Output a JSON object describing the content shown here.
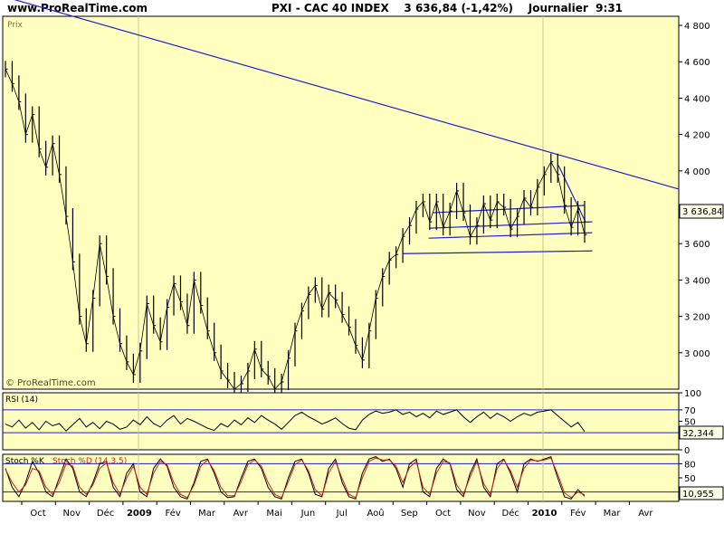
{
  "header": {
    "site": "www.ProRealTime.com",
    "title": "PXI - CAC 40 INDEX    3 636,84 (-1,42%)    Journalier  9:31"
  },
  "colors": {
    "panel_bg": "#ffffc0",
    "price_bar": "#000000",
    "trend_line": "#2020cc",
    "stoch_d": "#cc2020",
    "price_marker_bg": "#ffffe8"
  },
  "chart_data": [
    {
      "type": "line",
      "panel": "price",
      "label": "Prix",
      "watermark": "© ProRealTime.com",
      "ylim": [
        2800,
        4850
      ],
      "yticks": [
        3000,
        3200,
        3400,
        3600,
        3800,
        4000,
        4200,
        4400,
        4600,
        4800
      ],
      "ytick_labels": [
        "3 000",
        "3 200",
        "3 400",
        "3 600",
        "3 800",
        "4 000",
        "4 200",
        "4 400",
        "4 600",
        "4 800"
      ],
      "last_value_label": "3 636,84",
      "last_value": 3636.84,
      "series": [
        {
          "values": [
            4560,
            4480,
            4380,
            4200,
            4310,
            4120,
            4020,
            4150,
            3980,
            3750,
            3500,
            3200,
            3050,
            3300,
            3600,
            3420,
            3200,
            3050,
            2950,
            2880,
            3010,
            3270,
            3150,
            3060,
            3250,
            3380,
            3280,
            3150,
            3400,
            3260,
            3120,
            3000,
            2900,
            2850,
            2800,
            2830,
            2900,
            3020,
            2910,
            2870,
            2800,
            2840,
            2970,
            3120,
            3230,
            3320,
            3370,
            3240,
            3330,
            3290,
            3210,
            3140,
            3040,
            2960,
            3120,
            3300,
            3420,
            3510,
            3540,
            3640,
            3700,
            3790,
            3830,
            3720,
            3830,
            3690,
            3780,
            3890,
            3770,
            3640,
            3700,
            3820,
            3730,
            3830,
            3800,
            3680,
            3750,
            3850,
            3800,
            3910,
            3980,
            4050,
            3980,
            3810,
            3690,
            3790,
            3650
          ]
        }
      ],
      "trendlines": [
        {
          "from": [
            0.0,
            4960
          ],
          "to": [
            1.0,
            3900
          ]
        },
        {
          "from": [
            0.592,
            3545
          ],
          "to": [
            0.872,
            3560
          ]
        },
        {
          "from": [
            0.632,
            3685
          ],
          "to": [
            0.872,
            3720
          ]
        },
        {
          "from": [
            0.63,
            3630
          ],
          "to": [
            0.872,
            3660
          ]
        },
        {
          "from": [
            0.636,
            3770
          ],
          "to": [
            0.86,
            3810
          ]
        },
        {
          "from": [
            0.822,
            4030
          ],
          "to": [
            0.862,
            3720
          ]
        }
      ]
    },
    {
      "type": "line",
      "panel": "rsi",
      "label": "RSI (14)",
      "ylim": [
        0,
        100
      ],
      "yticks": [
        0,
        30,
        50,
        70,
        100
      ],
      "ytick_labels": [
        "0",
        "30",
        "50",
        "70",
        "100"
      ],
      "levels": [
        30,
        70
      ],
      "last_value_label": "32,344",
      "last_value": 32.344,
      "series": [
        {
          "values": [
            45,
            40,
            52,
            38,
            48,
            35,
            50,
            42,
            46,
            33,
            44,
            55,
            40,
            48,
            37,
            50,
            45,
            36,
            40,
            52,
            44,
            58,
            46,
            40,
            52,
            60,
            45,
            55,
            50,
            44,
            38,
            34,
            46,
            40,
            52,
            44,
            56,
            48,
            60,
            52,
            45,
            36,
            48,
            60,
            66,
            58,
            52,
            45,
            50,
            56,
            46,
            38,
            35,
            52,
            62,
            68,
            64,
            66,
            70,
            62,
            66,
            58,
            64,
            56,
            68,
            62,
            66,
            70,
            58,
            48,
            58,
            66,
            55,
            64,
            58,
            50,
            58,
            64,
            60,
            66,
            68,
            70,
            60,
            50,
            40,
            48,
            32
          ]
        }
      ]
    },
    {
      "type": "line",
      "panel": "stochastic",
      "label": "Stoch %K",
      "label2": "Stoch %D (14,3,5)",
      "ylim": [
        0,
        100
      ],
      "yticks": [
        20,
        50,
        80
      ],
      "ytick_labels": [
        "20",
        "50",
        "80"
      ],
      "levels": [
        20,
        80
      ],
      "last_value_label": "10,955",
      "last_value": 10.955,
      "series": [
        {
          "name": "Stoch %K",
          "values": [
            70,
            30,
            10,
            40,
            85,
            60,
            20,
            10,
            50,
            90,
            70,
            20,
            10,
            40,
            80,
            85,
            30,
            10,
            60,
            80,
            20,
            10,
            70,
            90,
            75,
            30,
            10,
            5,
            40,
            85,
            90,
            60,
            20,
            8,
            10,
            50,
            85,
            90,
            70,
            30,
            10,
            5,
            50,
            85,
            90,
            60,
            15,
            10,
            70,
            90,
            40,
            10,
            5,
            60,
            90,
            95,
            85,
            90,
            70,
            30,
            80,
            90,
            20,
            10,
            70,
            90,
            80,
            25,
            10,
            60,
            90,
            30,
            10,
            80,
            90,
            60,
            20,
            80,
            90,
            85,
            90,
            95,
            50,
            10,
            5,
            25,
            11
          ]
        },
        {
          "name": "Stoch %D (14,3,5)",
          "values": [
            68,
            40,
            20,
            35,
            70,
            65,
            30,
            15,
            40,
            80,
            75,
            30,
            15,
            35,
            70,
            82,
            40,
            15,
            50,
            75,
            30,
            15,
            60,
            85,
            78,
            40,
            15,
            8,
            35,
            75,
            88,
            65,
            30,
            12,
            12,
            42,
            78,
            88,
            75,
            40,
            15,
            8,
            42,
            78,
            88,
            65,
            25,
            12,
            60,
            85,
            48,
            15,
            8,
            50,
            85,
            92,
            88,
            88,
            75,
            40,
            72,
            85,
            30,
            15,
            60,
            85,
            82,
            35,
            15,
            52,
            85,
            38,
            15,
            70,
            88,
            65,
            30,
            70,
            88,
            86,
            88,
            92,
            58,
            18,
            8,
            20,
            14
          ]
        }
      ]
    }
  ],
  "x_axis": {
    "labels": [
      "Oct",
      "Nov",
      "Déc",
      "2009",
      "Fév",
      "Mar",
      "Avr",
      "Mai",
      "Jun",
      "Jul",
      "Aoû",
      "Sep",
      "Oct",
      "Nov",
      "Déc",
      "2010",
      "Fév",
      "Mar",
      "Avr"
    ],
    "bold": [
      false,
      false,
      false,
      true,
      false,
      false,
      false,
      false,
      false,
      false,
      false,
      false,
      false,
      false,
      false,
      true,
      false,
      false,
      false
    ]
  }
}
